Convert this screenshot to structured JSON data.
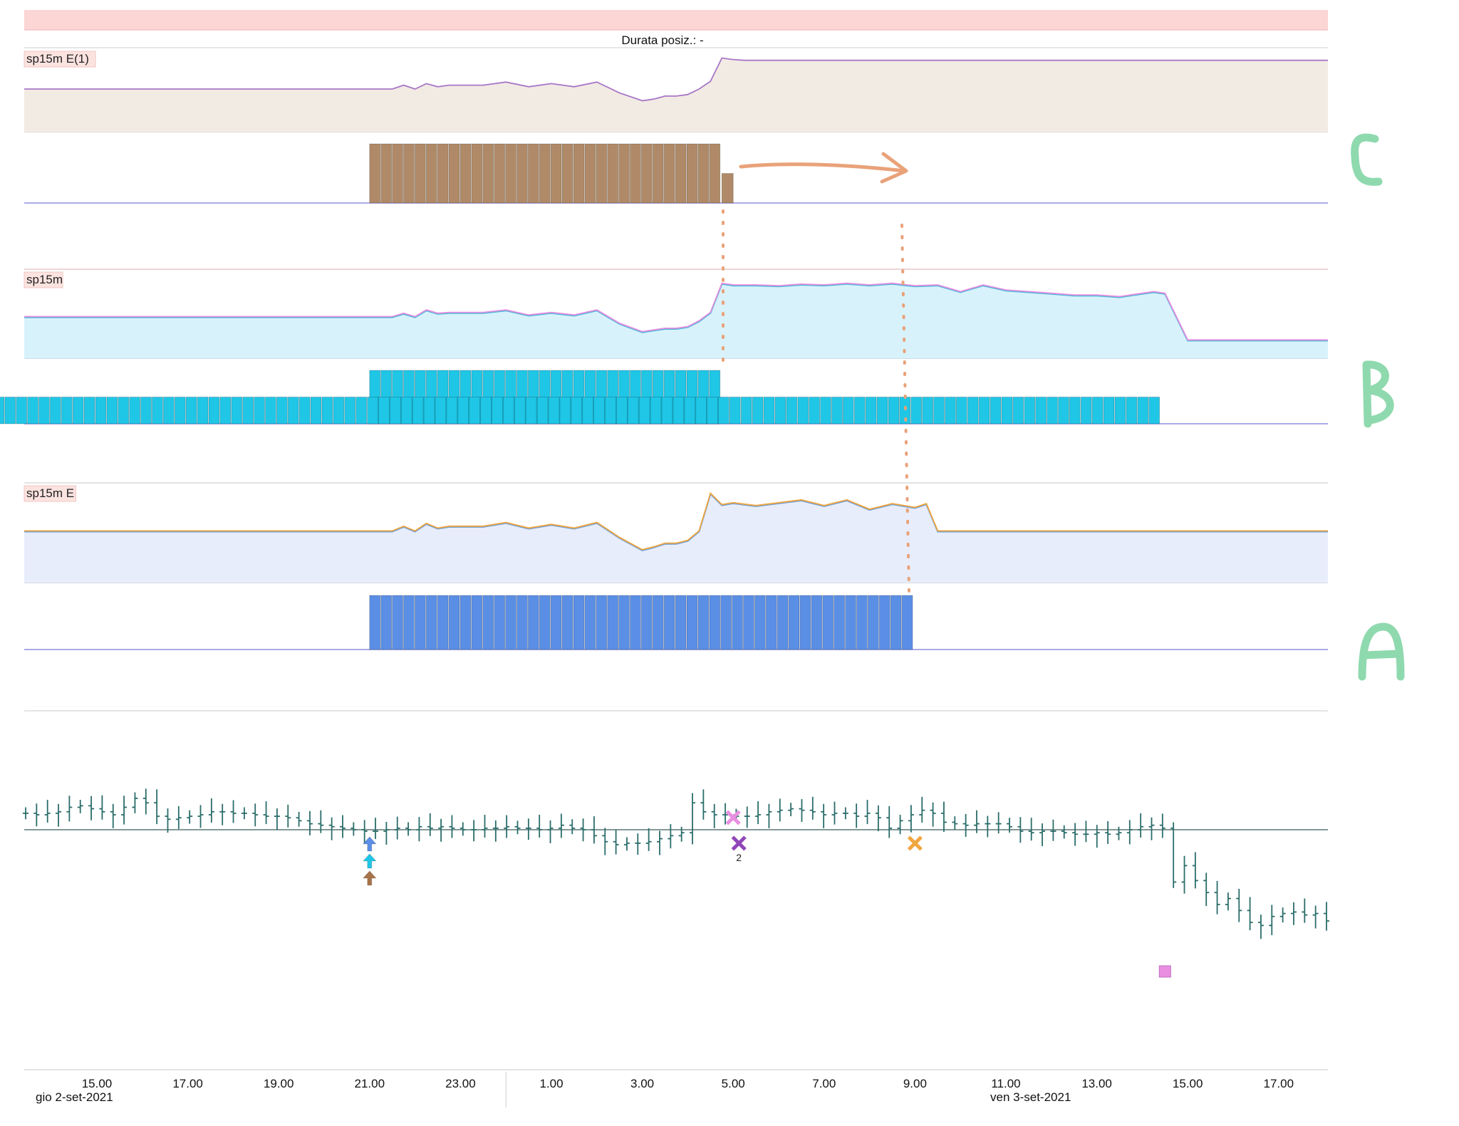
{
  "header": {
    "status_text": "Durata posiz.: -"
  },
  "colors": {
    "alert_bar": "#fcd5d5",
    "panel_bg": "#fdfcfb",
    "price_bar": "#2a6d6a",
    "annotation_orange": "#e9a27a",
    "annotation_green": "#8fd9ae",
    "axis_line": "#9b9bd6"
  },
  "chart_data": [
    {
      "type": "area",
      "panel": "C-line",
      "label": "sp15m E(1)",
      "line_color": "#a877c8",
      "fill_color": "#f2ebe4",
      "x": [
        "14.00",
        "15.00",
        "16.00",
        "17.00",
        "18.00",
        "19.00",
        "20.00",
        "21.00",
        "21.30",
        "21.45",
        "22.00",
        "22.15",
        "22.30",
        "22.45",
        "23.00",
        "23.30",
        "0.00",
        "0.30",
        "1.00",
        "1.30",
        "2.00",
        "2.30",
        "3.00",
        "3.15",
        "3.30",
        "3.45",
        "4.00",
        "4.15",
        "4.30",
        "4.45",
        "5.00",
        "5.15",
        "5.30",
        "6.00",
        "8.00",
        "10.00",
        "12.00",
        "14.00",
        "16.00",
        "18.00"
      ],
      "values": [
        0.55,
        0.55,
        0.55,
        0.55,
        0.55,
        0.55,
        0.55,
        0.55,
        0.55,
        0.6,
        0.55,
        0.62,
        0.58,
        0.6,
        0.6,
        0.6,
        0.64,
        0.58,
        0.62,
        0.58,
        0.64,
        0.5,
        0.4,
        0.42,
        0.46,
        0.46,
        0.48,
        0.55,
        0.65,
        0.95,
        0.93,
        0.92,
        0.92,
        0.92,
        0.92,
        0.92,
        0.92,
        0.92,
        0.92,
        0.92
      ]
    },
    {
      "type": "bar",
      "panel": "C-bars",
      "color": "#b08a68",
      "start": "21.00",
      "end": "4.45",
      "tail_end": "5.00",
      "level": 1,
      "tail_level": 0.5
    },
    {
      "type": "area",
      "panel": "B-line",
      "label": "sp15m",
      "line_color": "#e58ee0",
      "line_color_2": "#45b9d8",
      "fill_color": "#d8f2fb",
      "x": [
        "14.00",
        "15.00",
        "16.00",
        "17.00",
        "18.00",
        "19.00",
        "20.00",
        "21.00",
        "21.30",
        "21.45",
        "22.00",
        "22.15",
        "22.30",
        "22.45",
        "23.00",
        "23.30",
        "0.00",
        "0.30",
        "1.00",
        "1.30",
        "2.00",
        "2.30",
        "3.00",
        "3.15",
        "3.30",
        "3.45",
        "4.00",
        "4.15",
        "4.30",
        "4.45",
        "5.00",
        "5.30",
        "6.00",
        "6.30",
        "7.00",
        "7.30",
        "8.00",
        "8.30",
        "9.00",
        "9.30",
        "10.00",
        "10.30",
        "11.00",
        "11.30",
        "12.00",
        "12.30",
        "13.00",
        "13.30",
        "14.00",
        "14.15",
        "14.30",
        "15.00",
        "16.00",
        "17.00",
        "18.00"
      ],
      "values": [
        0.5,
        0.5,
        0.5,
        0.5,
        0.5,
        0.5,
        0.5,
        0.5,
        0.5,
        0.54,
        0.5,
        0.58,
        0.54,
        0.55,
        0.55,
        0.55,
        0.58,
        0.52,
        0.55,
        0.52,
        0.58,
        0.42,
        0.32,
        0.34,
        0.36,
        0.36,
        0.38,
        0.45,
        0.55,
        0.9,
        0.88,
        0.88,
        0.87,
        0.89,
        0.88,
        0.9,
        0.88,
        0.9,
        0.87,
        0.88,
        0.8,
        0.88,
        0.82,
        0.8,
        0.78,
        0.76,
        0.76,
        0.74,
        0.78,
        0.8,
        0.78,
        0.22,
        0.22,
        0.22,
        0.22
      ]
    },
    {
      "type": "bar",
      "panel": "B-bars",
      "color": "#1fc6e6",
      "segments": [
        {
          "start": "21.00",
          "end": "4.45",
          "level": 1
        },
        {
          "start": "4.45",
          "end": "14.30",
          "level": 0.5
        }
      ]
    },
    {
      "type": "area",
      "panel": "A-line",
      "label": "sp15m E",
      "line_color": "#f0a640",
      "line_color_2": "#6a9ed8",
      "fill_color": "#e8edfb",
      "x": [
        "14.00",
        "15.00",
        "16.00",
        "17.00",
        "18.00",
        "19.00",
        "20.00",
        "21.00",
        "21.30",
        "21.45",
        "22.00",
        "22.15",
        "22.30",
        "22.45",
        "23.00",
        "23.30",
        "0.00",
        "0.30",
        "1.00",
        "1.30",
        "2.00",
        "2.30",
        "3.00",
        "3.15",
        "3.30",
        "3.45",
        "4.00",
        "4.15",
        "4.30",
        "4.45",
        "5.00",
        "5.30",
        "6.00",
        "6.30",
        "7.00",
        "7.30",
        "8.00",
        "8.30",
        "9.00",
        "9.15",
        "9.30",
        "10.00",
        "12.00",
        "14.00",
        "16.00",
        "18.00"
      ],
      "values": [
        0.55,
        0.55,
        0.55,
        0.55,
        0.55,
        0.55,
        0.55,
        0.55,
        0.55,
        0.6,
        0.55,
        0.63,
        0.58,
        0.6,
        0.6,
        0.6,
        0.64,
        0.58,
        0.62,
        0.58,
        0.64,
        0.48,
        0.35,
        0.38,
        0.42,
        0.42,
        0.45,
        0.55,
        0.95,
        0.83,
        0.85,
        0.82,
        0.85,
        0.88,
        0.82,
        0.88,
        0.78,
        0.84,
        0.8,
        0.84,
        0.55,
        0.55,
        0.55,
        0.55,
        0.55,
        0.55
      ]
    },
    {
      "type": "bar",
      "panel": "A-bars",
      "color": "#5b8fe6",
      "start": "21.00",
      "end": "9.00",
      "level": 1
    },
    {
      "type": "ohlc",
      "panel": "price",
      "color": "#2a6d6a",
      "reference_level": 0,
      "x_ticks": [
        "15.00",
        "17.00",
        "19.00",
        "21.00",
        "23.00",
        "1.00",
        "3.00",
        "5.00",
        "7.00",
        "9.00",
        "11.00",
        "13.00",
        "15.00",
        "17.00"
      ],
      "date_labels": [
        "gio 2-set-2021",
        "ven 3-set-2021"
      ],
      "close": [
        2.2,
        2.0,
        2.2,
        2.4,
        3.0,
        3.2,
        2.8,
        2.4,
        2.0,
        3.0,
        4.2,
        3.6,
        1.8,
        1.4,
        1.6,
        1.8,
        2.0,
        2.4,
        2.4,
        2.2,
        2.2,
        2.0,
        1.8,
        1.8,
        1.6,
        1.2,
        0.8,
        0.6,
        0.4,
        0.2,
        0.0,
        -0.2,
        -0.2,
        0.0,
        0.2,
        0.0,
        0.4,
        0.2,
        0.4,
        0.2,
        0.0,
        0.0,
        0.2,
        0.2,
        0.4,
        0.2,
        0.2,
        0.0,
        0.2,
        0.6,
        0.2,
        0.0,
        -0.8,
        -1.6,
        -2.0,
        -1.8,
        -1.8,
        -1.6,
        -1.2,
        -0.8,
        -0.4,
        3.6,
        2.4,
        2.0,
        2.0,
        1.8,
        1.8,
        2.0,
        2.4,
        2.6,
        2.8,
        2.6,
        2.4,
        2.0,
        2.2,
        2.2,
        1.8,
        2.2,
        1.6,
        0.2,
        1.2,
        2.0,
        2.6,
        2.2,
        1.0,
        0.8,
        0.6,
        0.8,
        0.8,
        0.8,
        0.4,
        -0.2,
        -0.4,
        -0.2,
        -0.2,
        -0.4,
        -0.6,
        -0.6,
        -0.4,
        -0.6,
        -0.4,
        0.0,
        0.4,
        0.6,
        0.2,
        -7.0,
        -4.8,
        -6.8,
        -8.4,
        -10.0,
        -9.2,
        -10.8,
        -12.4,
        -12.8,
        -11.6,
        -11.2,
        -11.0,
        -11.4,
        -11.2,
        -12.2
      ],
      "markers": [
        {
          "x": "21.00",
          "shape": "arrow-up",
          "color": "#5b8fe6"
        },
        {
          "x": "21.00",
          "shape": "arrow-up",
          "color": "#1fc6e6"
        },
        {
          "x": "21.00",
          "shape": "arrow-up",
          "color": "#a8734a"
        },
        {
          "x": "5.00",
          "shape": "cross",
          "color": "#e98ee0"
        },
        {
          "x": "5.00",
          "shape": "cross",
          "color": "#9146b8",
          "label": "2"
        },
        {
          "x": "9.00",
          "shape": "cross",
          "color": "#f0a640"
        },
        {
          "x": "14.30",
          "shape": "square",
          "color": "#e98ee0"
        }
      ]
    }
  ],
  "hand_annotations": {
    "letters": [
      "C",
      "B",
      "A"
    ]
  }
}
